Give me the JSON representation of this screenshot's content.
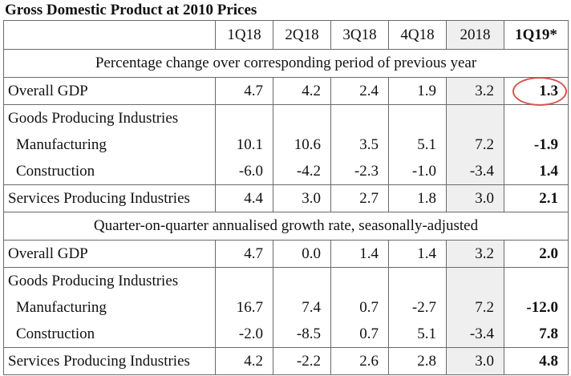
{
  "title": "Gross Domestic Product at 2010 Prices",
  "columns": [
    "1Q18",
    "2Q18",
    "3Q18",
    "4Q18",
    "2018",
    "1Q19*"
  ],
  "sections": [
    {
      "heading": "Percentage change over corresponding period of previous year",
      "overall": {
        "label": "Overall GDP",
        "values": [
          "4.7",
          "4.2",
          "2.4",
          "1.9",
          "3.2",
          "1.3"
        ]
      },
      "goods": {
        "label": "Goods Producing Industries",
        "rows": [
          {
            "label": "Manufacturing",
            "values": [
              "10.1",
              "10.6",
              "3.5",
              "5.1",
              "7.2",
              "-1.9"
            ]
          },
          {
            "label": "Construction",
            "values": [
              "-6.0",
              "-4.2",
              "-2.3",
              "-1.0",
              "-3.4",
              "1.4"
            ]
          }
        ]
      },
      "services": {
        "label": "Services Producing Industries",
        "values": [
          "4.4",
          "3.0",
          "2.7",
          "1.8",
          "3.0",
          "2.1"
        ]
      }
    },
    {
      "heading": "Quarter-on-quarter annualised growth rate, seasonally-adjusted",
      "overall": {
        "label": "Overall GDP",
        "values": [
          "4.7",
          "0.0",
          "1.4",
          "1.4",
          "3.2",
          "2.0"
        ]
      },
      "goods": {
        "label": "Goods Producing Industries",
        "rows": [
          {
            "label": "Manufacturing",
            "values": [
              "16.7",
              "7.4",
              "0.7",
              "-2.7",
              "7.2",
              "-12.0"
            ]
          },
          {
            "label": "Construction",
            "values": [
              "-2.0",
              "-8.5",
              "0.7",
              "5.1",
              "-3.4",
              "7.8"
            ]
          }
        ]
      },
      "services": {
        "label": "Services Producing Industries",
        "values": [
          "4.2",
          "-2.2",
          "2.6",
          "2.8",
          "3.0",
          "4.8"
        ]
      }
    }
  ],
  "colors": {
    "border": "#6a6a6a",
    "shade": "#efefef",
    "highlight": "#d9534f"
  }
}
